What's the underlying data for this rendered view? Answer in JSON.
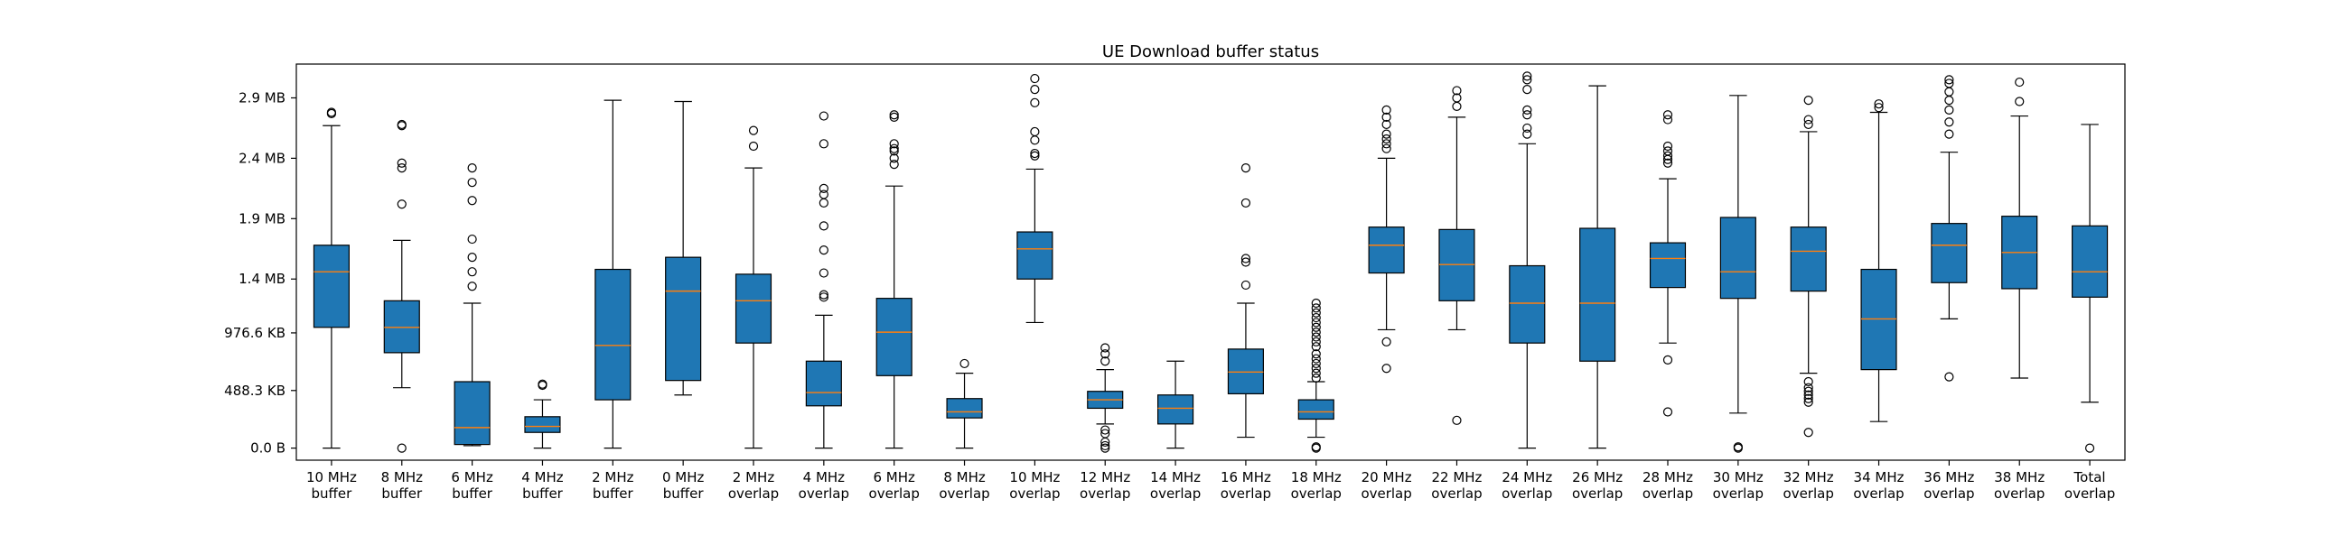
{
  "chart_data": {
    "type": "box",
    "title": "UE Download buffer status",
    "xlabel": "",
    "ylabel": "",
    "y_unit": "MB",
    "ylim": [
      -0.1,
      3.18
    ],
    "y_ticks": [
      {
        "value": 0.0,
        "label": "0.0 B"
      },
      {
        "value": 0.477,
        "label": "488.3 KB"
      },
      {
        "value": 0.954,
        "label": "976.6 KB"
      },
      {
        "value": 1.4,
        "label": "1.4 MB"
      },
      {
        "value": 1.9,
        "label": "1.9 MB"
      },
      {
        "value": 2.4,
        "label": "2.4 MB"
      },
      {
        "value": 2.9,
        "label": "2.9 MB"
      }
    ],
    "grid": false,
    "box_color": "#1f77b4",
    "median_color": "#ff7f0e",
    "boxes": [
      {
        "label": [
          "10 MHz",
          "buffer"
        ],
        "whisker_low": 0.0,
        "q1": 1.0,
        "median": 1.46,
        "q3": 1.68,
        "whisker_high": 2.67,
        "outliers": [
          2.77,
          2.78
        ]
      },
      {
        "label": [
          "8 MHz",
          "buffer"
        ],
        "whisker_low": 0.5,
        "q1": 0.79,
        "median": 1.0,
        "q3": 1.22,
        "whisker_high": 1.72,
        "outliers": [
          0.0,
          2.02,
          2.32,
          2.36,
          2.67,
          2.68
        ]
      },
      {
        "label": [
          "6 MHz",
          "buffer"
        ],
        "whisker_low": 0.02,
        "q1": 0.03,
        "median": 0.17,
        "q3": 0.55,
        "whisker_high": 1.2,
        "outliers": [
          1.34,
          1.46,
          1.58,
          1.73,
          2.05,
          2.2,
          2.32
        ]
      },
      {
        "label": [
          "4 MHz",
          "buffer"
        ],
        "whisker_low": 0.0,
        "q1": 0.13,
        "median": 0.18,
        "q3": 0.26,
        "whisker_high": 0.4,
        "outliers": [
          0.52,
          0.53
        ]
      },
      {
        "label": [
          "2 MHz",
          "buffer"
        ],
        "whisker_low": 0.0,
        "q1": 0.4,
        "median": 0.85,
        "q3": 1.48,
        "whisker_high": 2.88,
        "outliers": []
      },
      {
        "label": [
          "0 MHz",
          "buffer"
        ],
        "whisker_low": 0.44,
        "q1": 0.56,
        "median": 1.3,
        "q3": 1.58,
        "whisker_high": 2.87,
        "outliers": []
      },
      {
        "label": [
          "2 MHz",
          "overlap"
        ],
        "whisker_low": 0.0,
        "q1": 0.87,
        "median": 1.22,
        "q3": 1.44,
        "whisker_high": 2.32,
        "outliers": [
          2.5,
          2.63
        ]
      },
      {
        "label": [
          "4 MHz",
          "overlap"
        ],
        "whisker_low": 0.0,
        "q1": 0.35,
        "median": 0.46,
        "q3": 0.72,
        "whisker_high": 1.1,
        "outliers": [
          1.25,
          1.27,
          1.45,
          1.64,
          1.84,
          2.03,
          2.1,
          2.15,
          2.52,
          2.75
        ]
      },
      {
        "label": [
          "6 MHz",
          "overlap"
        ],
        "whisker_low": 0.0,
        "q1": 0.6,
        "median": 0.96,
        "q3": 1.24,
        "whisker_high": 2.17,
        "outliers": [
          2.35,
          2.4,
          2.46,
          2.48,
          2.52,
          2.74,
          2.76
        ]
      },
      {
        "label": [
          "8 MHz",
          "overlap"
        ],
        "whisker_low": 0.0,
        "q1": 0.25,
        "median": 0.3,
        "q3": 0.41,
        "whisker_high": 0.62,
        "outliers": [
          0.7
        ]
      },
      {
        "label": [
          "10 MHz",
          "overlap"
        ],
        "whisker_low": 1.04,
        "q1": 1.4,
        "median": 1.65,
        "q3": 1.79,
        "whisker_high": 2.31,
        "outliers": [
          2.42,
          2.44,
          2.55,
          2.62,
          2.86,
          2.97,
          3.06
        ]
      },
      {
        "label": [
          "12 MHz",
          "overlap"
        ],
        "whisker_low": 0.2,
        "q1": 0.33,
        "median": 0.4,
        "q3": 0.47,
        "whisker_high": 0.65,
        "outliers": [
          0.0,
          0.02,
          0.05,
          0.12,
          0.15,
          0.72,
          0.78,
          0.83
        ]
      },
      {
        "label": [
          "14 MHz",
          "overlap"
        ],
        "whisker_low": 0.0,
        "q1": 0.2,
        "median": 0.33,
        "q3": 0.44,
        "whisker_high": 0.72,
        "outliers": []
      },
      {
        "label": [
          "16 MHz",
          "overlap"
        ],
        "whisker_low": 0.09,
        "q1": 0.45,
        "median": 0.63,
        "q3": 0.82,
        "whisker_high": 1.2,
        "outliers": [
          1.35,
          1.54,
          1.57,
          2.03,
          2.32
        ]
      },
      {
        "label": [
          "18 MHz",
          "overlap"
        ],
        "whisker_low": 0.09,
        "q1": 0.24,
        "median": 0.3,
        "q3": 0.4,
        "whisker_high": 0.55,
        "outliers": [
          0.0,
          0.01,
          0.58,
          0.62,
          0.66,
          0.7,
          0.74,
          0.78,
          0.84,
          0.88,
          0.92,
          0.96,
          1.0,
          1.04,
          1.08,
          1.12,
          1.16,
          1.2
        ]
      },
      {
        "label": [
          "20 MHz",
          "overlap"
        ],
        "whisker_low": 0.98,
        "q1": 1.45,
        "median": 1.68,
        "q3": 1.83,
        "whisker_high": 2.4,
        "outliers": [
          0.66,
          0.88,
          2.48,
          2.52,
          2.56,
          2.6,
          2.68,
          2.74,
          2.8
        ]
      },
      {
        "label": [
          "22 MHz",
          "overlap"
        ],
        "whisker_low": 0.98,
        "q1": 1.22,
        "median": 1.52,
        "q3": 1.81,
        "whisker_high": 2.74,
        "outliers": [
          0.23,
          2.83,
          2.9,
          2.96
        ]
      },
      {
        "label": [
          "24 MHz",
          "overlap"
        ],
        "whisker_low": 0.0,
        "q1": 0.87,
        "median": 1.2,
        "q3": 1.51,
        "whisker_high": 2.52,
        "outliers": [
          2.6,
          2.65,
          2.76,
          2.8,
          2.97,
          3.05,
          3.08
        ]
      },
      {
        "label": [
          "26 MHz",
          "overlap"
        ],
        "whisker_low": 0.0,
        "q1": 0.72,
        "median": 1.2,
        "q3": 1.82,
        "whisker_high": 3.0,
        "outliers": []
      },
      {
        "label": [
          "28 MHz",
          "overlap"
        ],
        "whisker_low": 0.87,
        "q1": 1.33,
        "median": 1.57,
        "q3": 1.7,
        "whisker_high": 2.23,
        "outliers": [
          0.3,
          0.73,
          2.36,
          2.39,
          2.42,
          2.46,
          2.5,
          2.72,
          2.76
        ]
      },
      {
        "label": [
          "30 MHz",
          "overlap"
        ],
        "whisker_low": 0.29,
        "q1": 1.24,
        "median": 1.46,
        "q3": 1.91,
        "whisker_high": 2.92,
        "outliers": [
          0.0,
          0.01
        ]
      },
      {
        "label": [
          "32 MHz",
          "overlap"
        ],
        "whisker_low": 0.62,
        "q1": 1.3,
        "median": 1.63,
        "q3": 1.83,
        "whisker_high": 2.62,
        "outliers": [
          0.13,
          0.38,
          0.41,
          0.44,
          0.47,
          0.5,
          0.55,
          2.68,
          2.72,
          2.88
        ]
      },
      {
        "label": [
          "34 MHz",
          "overlap"
        ],
        "whisker_low": 0.22,
        "q1": 0.65,
        "median": 1.07,
        "q3": 1.48,
        "whisker_high": 2.78,
        "outliers": [
          2.82,
          2.85
        ]
      },
      {
        "label": [
          "36 MHz",
          "overlap"
        ],
        "whisker_low": 1.07,
        "q1": 1.37,
        "median": 1.68,
        "q3": 1.86,
        "whisker_high": 2.45,
        "outliers": [
          0.59,
          2.6,
          2.7,
          2.8,
          2.88,
          2.95,
          3.02,
          3.05
        ]
      },
      {
        "label": [
          "38 MHz",
          "overlap"
        ],
        "whisker_low": 0.58,
        "q1": 1.32,
        "median": 1.62,
        "q3": 1.92,
        "whisker_high": 2.75,
        "outliers": [
          2.87,
          3.03
        ]
      },
      {
        "label": [
          "Total",
          "overlap"
        ],
        "whisker_low": 0.38,
        "q1": 1.25,
        "median": 1.46,
        "q3": 1.84,
        "whisker_high": 2.68,
        "outliers": [
          0.0
        ]
      }
    ]
  }
}
